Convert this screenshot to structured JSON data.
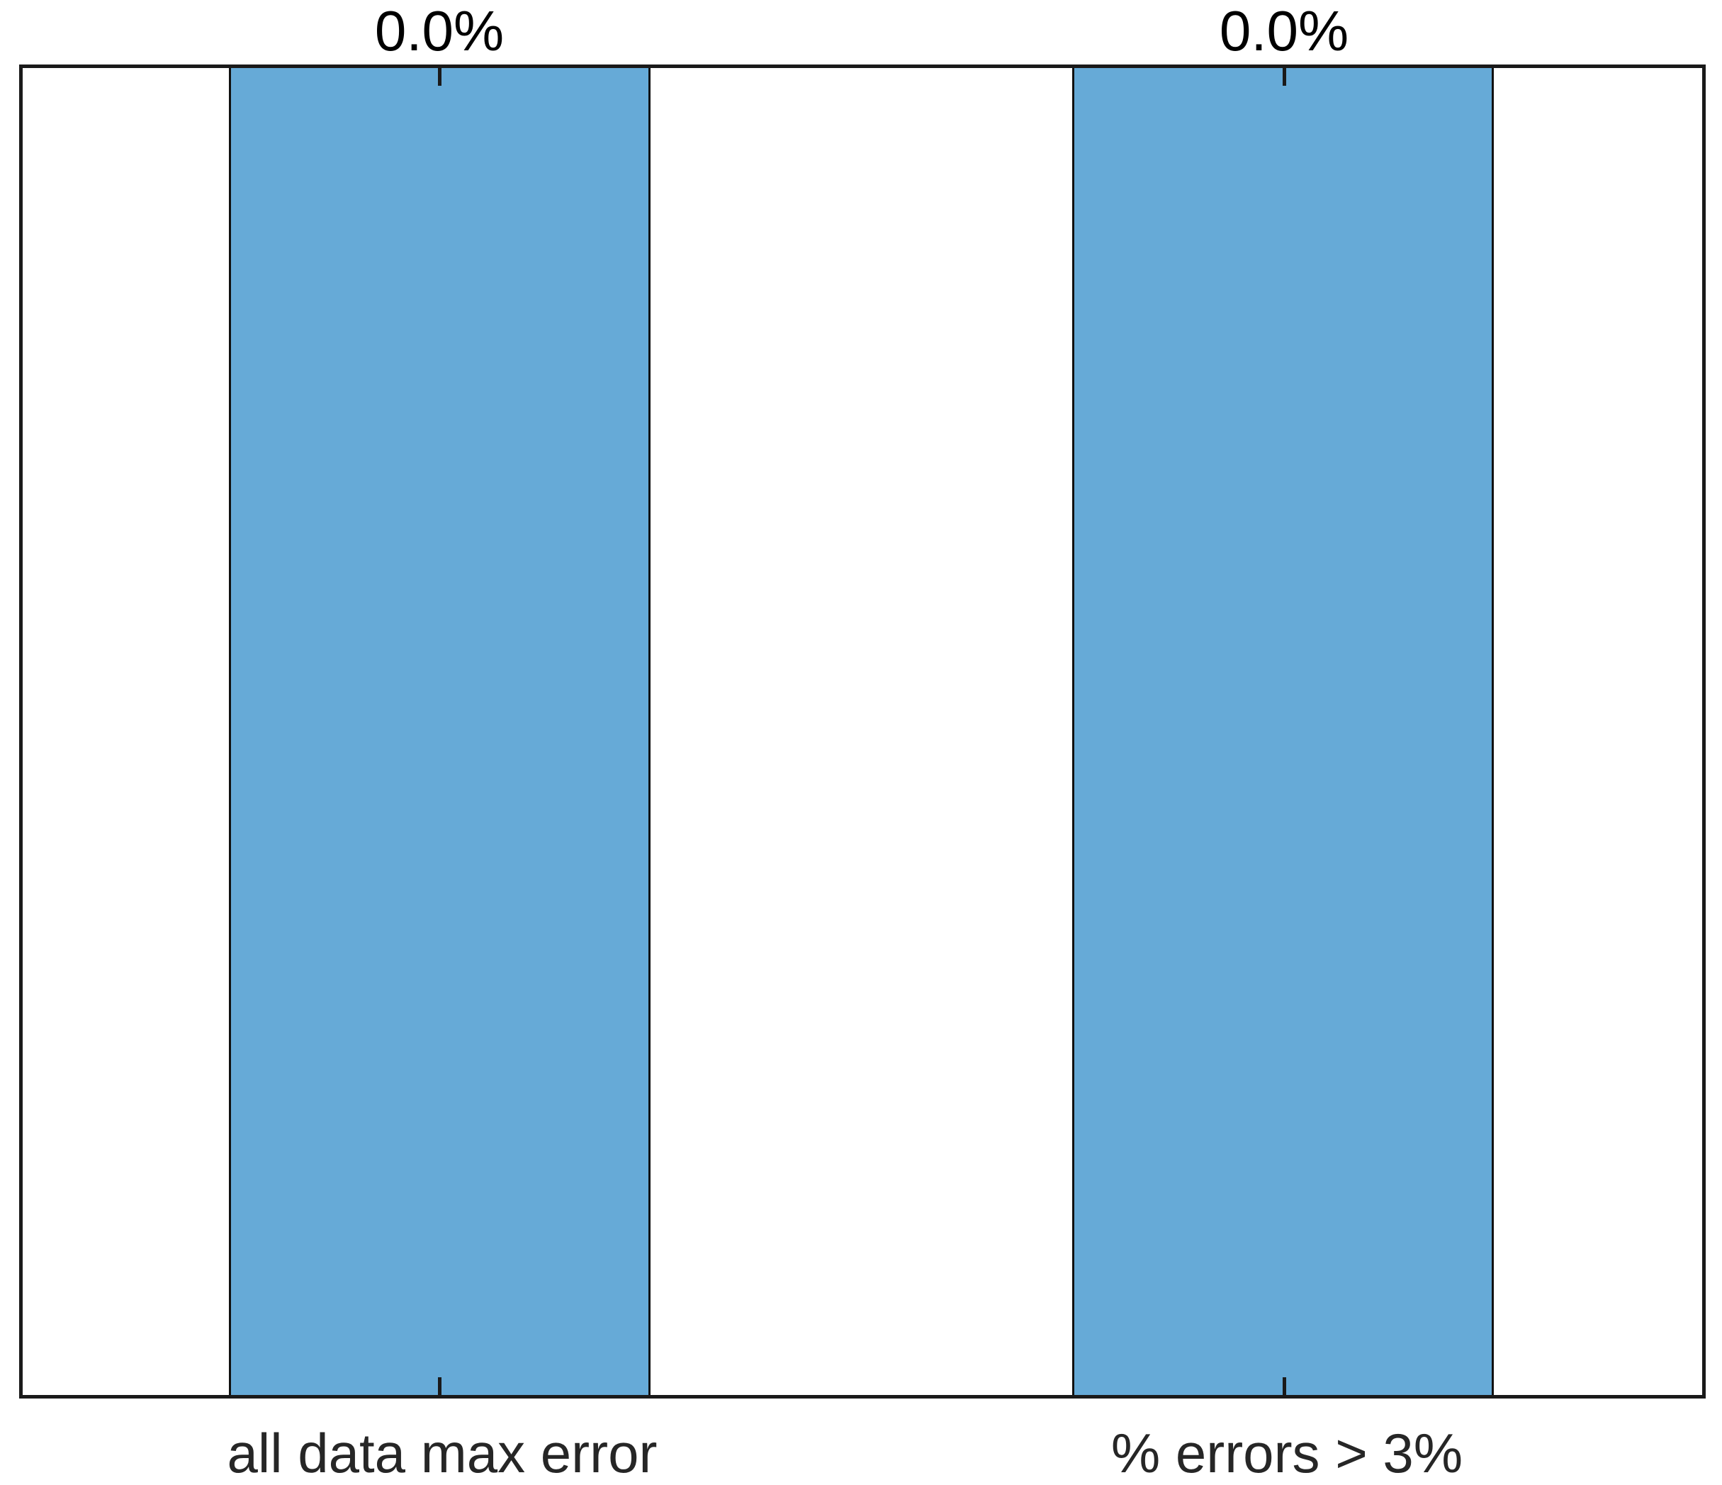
{
  "chart_data": {
    "type": "bar",
    "categories": [
      "all data max error",
      "% errors > 3%"
    ],
    "values": [
      0.0,
      0.0
    ],
    "value_labels": [
      "0.0%",
      "0.0%"
    ],
    "title": "",
    "xlabel": "",
    "ylabel": "",
    "yticks": [],
    "grid": false,
    "legend_position": "none",
    "bar_height_fraction": 1.0,
    "bar_width_fraction": 0.5,
    "colors": {
      "bar_fill": "#66AAD7",
      "bar_edge": "#111111",
      "axes_border": "#1a1a1a",
      "tick": "#1a1a1a",
      "value_label_text": "#000000",
      "category_label_text": "#262626",
      "background": "#ffffff"
    }
  }
}
